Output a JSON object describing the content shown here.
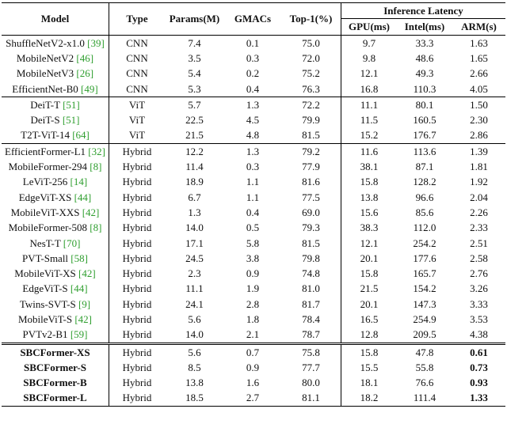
{
  "table": {
    "header": [
      "Model",
      "Type",
      "Params(M)",
      "GMACs",
      "Top-1(%)",
      "GPU(ms)",
      "Intel(ms)",
      "ARM(s)"
    ],
    "group_header": "Inference Latency",
    "groups": [
      [
        {
          "model": "ShuffleNetV2-x1.0",
          "cite": "[39]",
          "cells": [
            "CNN",
            "7.4",
            "0.1",
            "75.0",
            "9.7",
            "33.3",
            "1.63"
          ]
        },
        {
          "model": "MobileNetV2",
          "cite": "[46]",
          "cells": [
            "CNN",
            "3.5",
            "0.3",
            "72.0",
            "9.8",
            "48.6",
            "1.65"
          ]
        },
        {
          "model": "MobileNetV3",
          "cite": "[26]",
          "cells": [
            "CNN",
            "5.4",
            "0.2",
            "75.2",
            "12.1",
            "49.3",
            "2.66"
          ]
        },
        {
          "model": "EfficientNet-B0",
          "cite": "[49]",
          "cells": [
            "CNN",
            "5.3",
            "0.4",
            "76.3",
            "16.8",
            "110.3",
            "4.05"
          ]
        }
      ],
      [
        {
          "model": "DeiT-T",
          "cite": "[51]",
          "cells": [
            "ViT",
            "5.7",
            "1.3",
            "72.2",
            "11.1",
            "80.1",
            "1.50"
          ]
        },
        {
          "model": "DeiT-S",
          "cite": "[51]",
          "cells": [
            "ViT",
            "22.5",
            "4.5",
            "79.9",
            "11.5",
            "160.5",
            "2.30"
          ]
        },
        {
          "model": "T2T-ViT-14",
          "cite": "[64]",
          "cells": [
            "ViT",
            "21.5",
            "4.8",
            "81.5",
            "15.2",
            "176.7",
            "2.86"
          ]
        }
      ],
      [
        {
          "model": "EfficientFormer-L1",
          "cite": "[32]",
          "cells": [
            "Hybrid",
            "12.2",
            "1.3",
            "79.2",
            "11.6",
            "113.6",
            "1.39"
          ]
        },
        {
          "model": "MobileFormer-294",
          "cite": "[8]",
          "cells": [
            "Hybrid",
            "11.4",
            "0.3",
            "77.9",
            "38.1",
            "87.1",
            "1.81"
          ]
        },
        {
          "model": "LeViT-256",
          "cite": "[14]",
          "cells": [
            "Hybrid",
            "18.9",
            "1.1",
            "81.6",
            "15.8",
            "128.2",
            "1.92"
          ]
        },
        {
          "model": "EdgeViT-XS",
          "cite": "[44]",
          "cells": [
            "Hybrid",
            "6.7",
            "1.1",
            "77.5",
            "13.8",
            "96.6",
            "2.04"
          ]
        },
        {
          "model": "MobileViT-XXS",
          "cite": "[42]",
          "cells": [
            "Hybrid",
            "1.3",
            "0.4",
            "69.0",
            "15.6",
            "85.6",
            "2.26"
          ]
        },
        {
          "model": "MobileFormer-508",
          "cite": "[8]",
          "cells": [
            "Hybrid",
            "14.0",
            "0.5",
            "79.3",
            "38.3",
            "112.0",
            "2.33"
          ]
        },
        {
          "model": "NesT-T",
          "cite": "[70]",
          "cells": [
            "Hybrid",
            "17.1",
            "5.8",
            "81.5",
            "12.1",
            "254.2",
            "2.51"
          ]
        },
        {
          "model": "PVT-Small",
          "cite": "[58]",
          "cells": [
            "Hybrid",
            "24.5",
            "3.8",
            "79.8",
            "20.1",
            "177.6",
            "2.58"
          ]
        },
        {
          "model": "MobileViT-XS",
          "cite": "[42]",
          "cells": [
            "Hybrid",
            "2.3",
            "0.9",
            "74.8",
            "15.8",
            "165.7",
            "2.76"
          ]
        },
        {
          "model": "EdgeViT-S",
          "cite": "[44]",
          "cells": [
            "Hybrid",
            "11.1",
            "1.9",
            "81.0",
            "21.5",
            "154.2",
            "3.26"
          ]
        },
        {
          "model": "Twins-SVT-S",
          "cite": "[9]",
          "cells": [
            "Hybrid",
            "24.1",
            "2.8",
            "81.7",
            "20.1",
            "147.3",
            "3.33"
          ]
        },
        {
          "model": "MobileViT-S",
          "cite": "[42]",
          "cells": [
            "Hybrid",
            "5.6",
            "1.8",
            "78.4",
            "16.5",
            "254.9",
            "3.53"
          ]
        },
        {
          "model": "PVTv2-B1",
          "cite": "[59]",
          "cells": [
            "Hybrid",
            "14.0",
            "2.1",
            "78.7",
            "12.8",
            "209.5",
            "4.38"
          ]
        }
      ],
      [
        {
          "model": "SBCFormer-XS",
          "cells": [
            "Hybrid",
            "5.6",
            "0.7",
            "75.8",
            "15.8",
            "47.8",
            "0.61"
          ]
        },
        {
          "model": "SBCFormer-S",
          "cells": [
            "Hybrid",
            "8.5",
            "0.9",
            "77.7",
            "15.5",
            "55.8",
            "0.73"
          ]
        },
        {
          "model": "SBCFormer-B",
          "cells": [
            "Hybrid",
            "13.8",
            "1.6",
            "80.0",
            "18.1",
            "76.6",
            "0.93"
          ]
        },
        {
          "model": "SBCFormer-L",
          "cells": [
            "Hybrid",
            "18.5",
            "2.7",
            "81.1",
            "18.2",
            "111.4",
            "1.33"
          ]
        }
      ]
    ]
  }
}
